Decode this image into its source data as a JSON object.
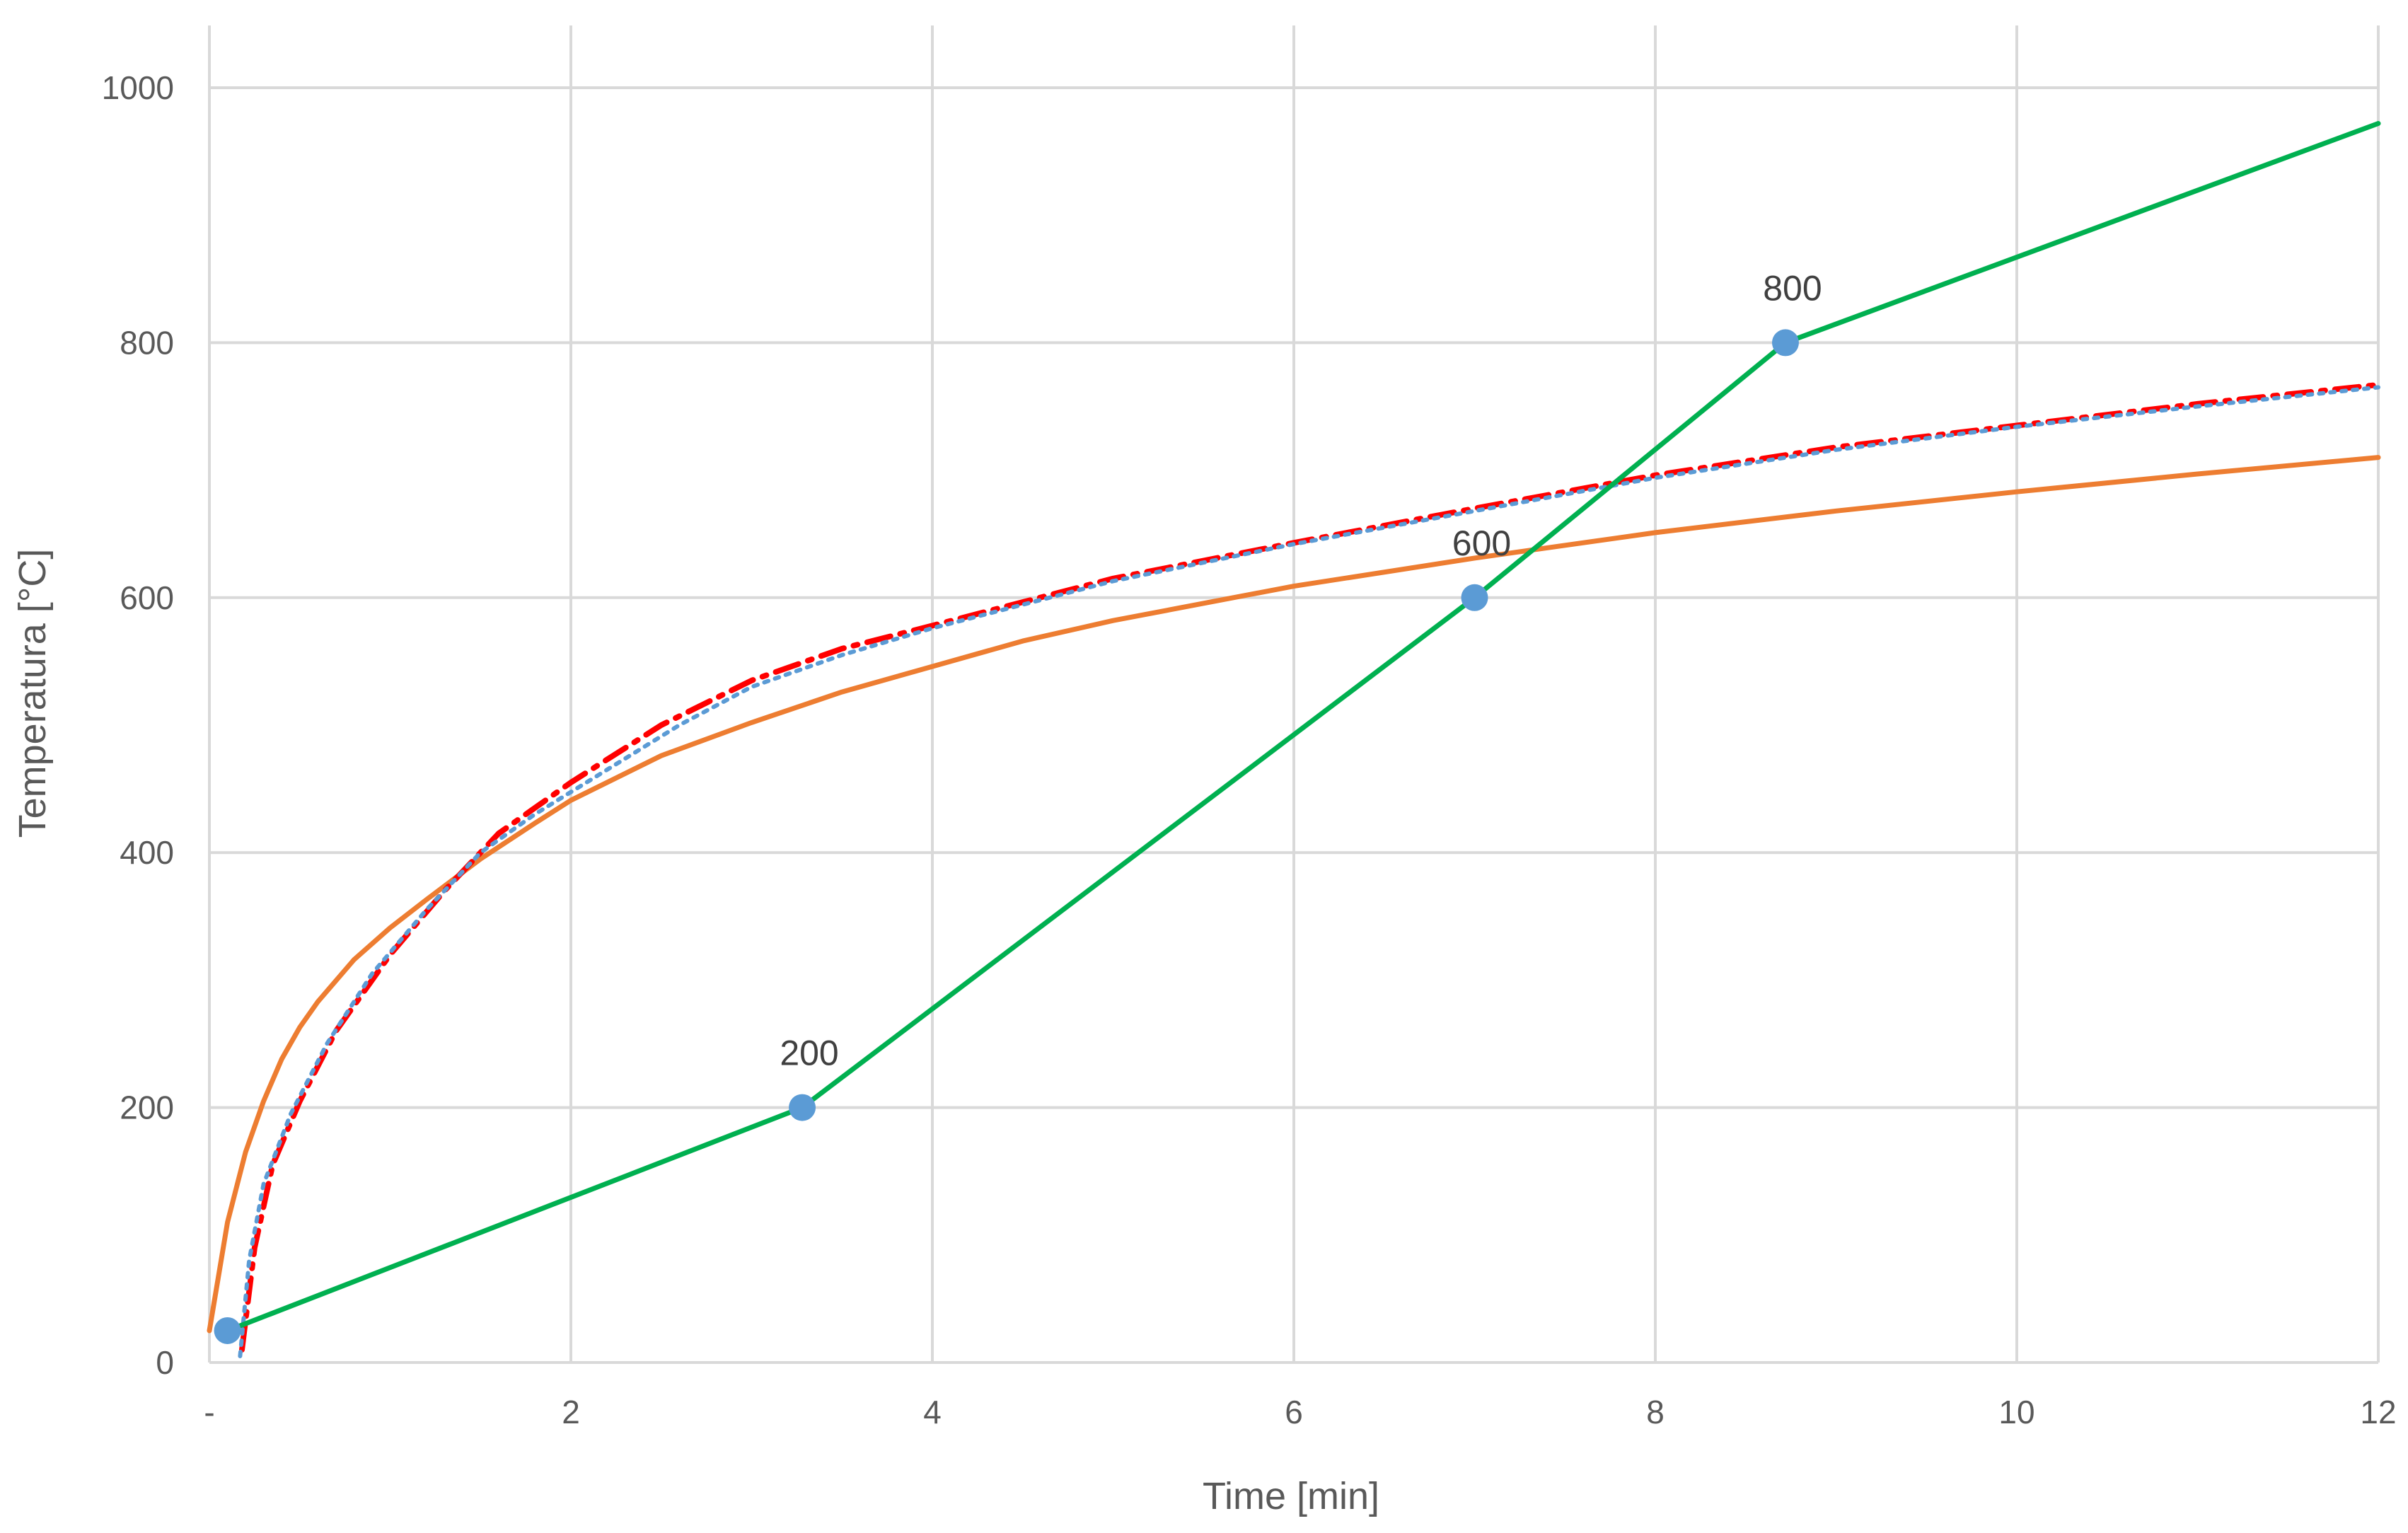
{
  "chart_data": {
    "type": "line",
    "title": "",
    "xlabel": "Time [min]",
    "ylabel": "Temperatura [°C]",
    "xlim": [
      0,
      12
    ],
    "ylim": [
      0,
      1000
    ],
    "x_ticks": [
      {
        "value": 0,
        "label": "-"
      },
      {
        "value": 2,
        "label": "2"
      },
      {
        "value": 4,
        "label": "4"
      },
      {
        "value": 6,
        "label": "6"
      },
      {
        "value": 8,
        "label": "8"
      },
      {
        "value": 10,
        "label": "10"
      },
      {
        "value": 12,
        "label": "12"
      }
    ],
    "y_ticks": [
      {
        "value": 0,
        "label": "0"
      },
      {
        "value": 200,
        "label": "200"
      },
      {
        "value": 400,
        "label": "400"
      },
      {
        "value": 600,
        "label": "600"
      },
      {
        "value": 800,
        "label": "800"
      },
      {
        "value": 1000,
        "label": "1000"
      }
    ],
    "grid": true,
    "legend": "none",
    "series": [
      {
        "color": "#ed7d31",
        "style": "solid",
        "x": [
          0,
          0.1,
          0.2,
          0.3,
          0.4,
          0.5,
          0.6,
          0.8,
          1.0,
          1.2,
          1.5,
          1.8,
          2.0,
          2.5,
          3.0,
          3.5,
          4.0,
          4.5,
          5.0,
          6.0,
          7.0,
          8.0,
          9.0,
          10.0,
          11.0,
          12.0
        ],
        "y": [
          25,
          110,
          165,
          205,
          238,
          263,
          283,
          316,
          341,
          363,
          395,
          423,
          441,
          476,
          502,
          526,
          546,
          566,
          582,
          609,
          631,
          651,
          668,
          683,
          697,
          710
        ]
      },
      {
        "color": "#ff0000",
        "style": "dash-dot",
        "x": [
          0.18,
          0.25,
          0.35,
          0.5,
          0.7,
          1.0,
          1.3,
          1.6,
          2.0,
          2.5,
          3.0,
          3.5,
          4.0,
          5.0,
          6.0,
          7.0,
          8.0,
          9.0,
          10.0,
          11.0,
          12.0
        ],
        "y": [
          10,
          90,
          155,
          205,
          260,
          320,
          370,
          415,
          455,
          500,
          535,
          560,
          578,
          615,
          643,
          670,
          696,
          718,
          735,
          752,
          767
        ]
      },
      {
        "color": "#5b9bd5",
        "style": "dotted",
        "x": [
          0.17,
          0.22,
          0.3,
          0.45,
          0.65,
          0.9,
          1.2,
          1.5,
          1.8,
          2.2,
          2.6,
          3.0,
          3.5,
          4.0,
          5.0,
          6.0,
          7.0,
          8.0,
          9.0,
          10.0,
          11.0,
          12.0
        ],
        "y": [
          5,
          80,
          140,
          195,
          250,
          305,
          355,
          400,
          430,
          465,
          500,
          530,
          555,
          576,
          613,
          642,
          668,
          694,
          716,
          734,
          750,
          765
        ]
      },
      {
        "color": "#00b050",
        "style": "solid",
        "x": [
          0.1,
          3.28,
          7.0,
          8.72,
          12.0
        ],
        "y": [
          25,
          200,
          600,
          800,
          972
        ]
      }
    ],
    "markers": {
      "color": "#5b9bd5",
      "points": [
        {
          "x": 0.1,
          "y": 25,
          "label": ""
        },
        {
          "x": 3.28,
          "y": 200,
          "label": "200"
        },
        {
          "x": 7.0,
          "y": 600,
          "label": "600"
        },
        {
          "x": 8.72,
          "y": 800,
          "label": "800"
        }
      ]
    }
  }
}
